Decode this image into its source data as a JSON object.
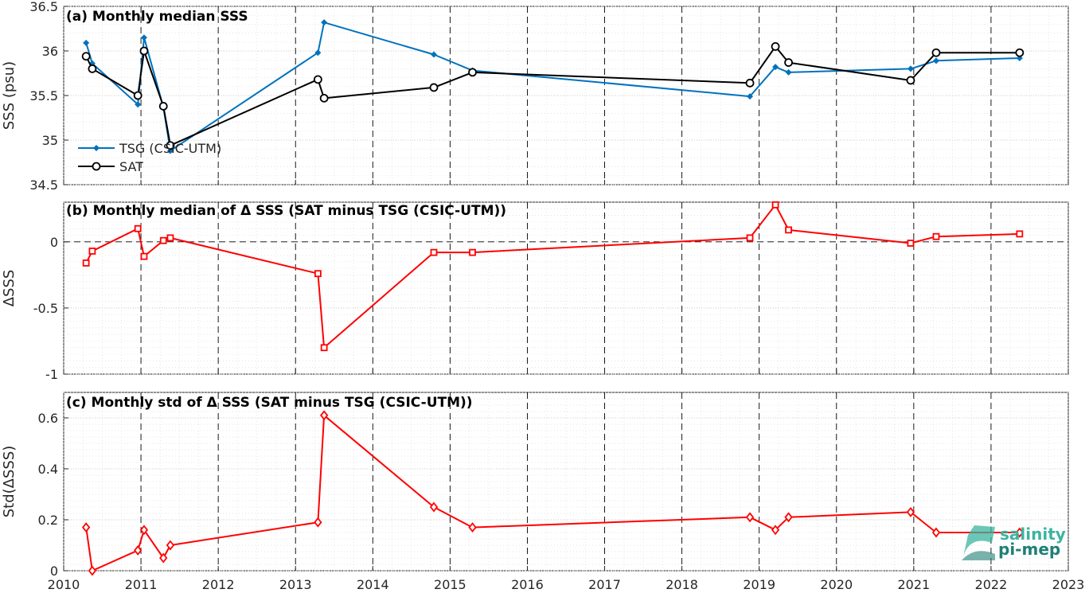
{
  "colors": {
    "tsg": "#0072BD",
    "sat": "#000000",
    "delta": "#FF0000",
    "logo_light": "#3bb4a0",
    "logo_dark": "#1f7f75"
  },
  "xticks": [
    "2010",
    "2011",
    "2012",
    "2013",
    "2014",
    "2015",
    "2016",
    "2017",
    "2018",
    "2019",
    "2020",
    "2021",
    "2022",
    "2023"
  ],
  "logo": {
    "line1": "salinity",
    "line2": "pi-mep"
  },
  "chart_data": [
    {
      "type": "line",
      "title": "(a) Monthly median SSS",
      "ylabel": "SSS (psu)",
      "xlim": [
        2010,
        2023
      ],
      "ylim": [
        34.5,
        36.5
      ],
      "yticks": [
        "34.5",
        "35",
        "35.5",
        "36",
        "36.5"
      ],
      "grid": true,
      "legend": "lower-left",
      "series": [
        {
          "name": "TSG (CSIC-UTM)",
          "marker": "diamond-filled",
          "x": [
            2010.29,
            2010.37,
            2010.96,
            2011.04,
            2011.29,
            2011.38,
            2013.29,
            2013.37,
            2014.79,
            2015.29,
            2018.88,
            2019.21,
            2019.38,
            2020.96,
            2021.29,
            2022.37
          ],
          "y": [
            36.09,
            35.86,
            35.4,
            36.15,
            35.37,
            34.88,
            35.98,
            36.32,
            35.96,
            35.78,
            35.49,
            35.82,
            35.76,
            35.8,
            35.89,
            35.92
          ]
        },
        {
          "name": "SAT",
          "marker": "circle-open",
          "x": [
            2010.29,
            2010.37,
            2010.96,
            2011.04,
            2011.29,
            2011.38,
            2013.29,
            2013.37,
            2014.79,
            2015.29,
            2018.88,
            2019.21,
            2019.38,
            2020.96,
            2021.29,
            2022.37
          ],
          "y": [
            35.94,
            35.8,
            35.5,
            36.0,
            35.38,
            34.94,
            35.68,
            35.47,
            35.59,
            35.76,
            35.64,
            36.05,
            35.87,
            35.67,
            35.98,
            35.98
          ]
        }
      ]
    },
    {
      "type": "line",
      "title": "(b) Monthly median of Δ SSS (SAT minus TSG (CSIC-UTM))",
      "ylabel": "ΔSSS",
      "xlim": [
        2010,
        2023
      ],
      "ylim": [
        -1,
        0.3
      ],
      "yticks": [
        "-1",
        "-0.5",
        "0"
      ],
      "grid": true,
      "zero_line": true,
      "series": [
        {
          "marker": "square-open",
          "x": [
            2010.29,
            2010.37,
            2010.96,
            2011.04,
            2011.29,
            2011.38,
            2013.29,
            2013.37,
            2014.79,
            2015.29,
            2018.88,
            2019.21,
            2019.38,
            2020.96,
            2021.29,
            2022.37
          ],
          "y": [
            -0.16,
            -0.07,
            0.1,
            -0.11,
            0.01,
            0.03,
            -0.24,
            -0.8,
            -0.08,
            -0.08,
            0.03,
            0.28,
            0.09,
            -0.01,
            0.04,
            0.06
          ]
        }
      ]
    },
    {
      "type": "line",
      "title": "(c) Monthly std of Δ SSS (SAT minus TSG (CSIC-UTM))",
      "ylabel": "Std(ΔSSS)",
      "xlim": [
        2010,
        2023
      ],
      "ylim": [
        0,
        0.7
      ],
      "yticks": [
        "0",
        "0.2",
        "0.4",
        "0.6"
      ],
      "grid": true,
      "series": [
        {
          "marker": "diamond-open",
          "x": [
            2010.29,
            2010.37,
            2010.96,
            2011.04,
            2011.29,
            2011.38,
            2013.29,
            2013.37,
            2014.79,
            2015.29,
            2018.88,
            2019.21,
            2019.38,
            2020.96,
            2021.29,
            2022.37
          ],
          "y": [
            0.17,
            0.0,
            0.08,
            0.16,
            0.05,
            0.1,
            0.19,
            0.61,
            0.25,
            0.17,
            0.21,
            0.16,
            0.21,
            0.23,
            0.15,
            0.15
          ]
        }
      ]
    }
  ]
}
